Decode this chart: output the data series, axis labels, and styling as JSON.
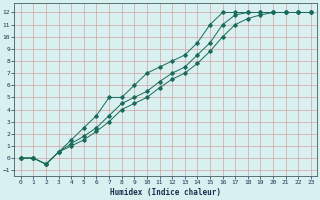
{
  "xlabel": "Humidex (Indice chaleur)",
  "background_color": "#d8f0f0",
  "plot_bg_color": "#d8f0f0",
  "grid_color": "#d4a0a0",
  "line_color": "#1a6b5a",
  "xlim": [
    -0.5,
    23.5
  ],
  "ylim": [
    -1.5,
    12.8
  ],
  "xticks": [
    0,
    1,
    2,
    3,
    4,
    5,
    6,
    7,
    8,
    9,
    10,
    11,
    12,
    13,
    14,
    15,
    16,
    17,
    18,
    19,
    20,
    21,
    22,
    23
  ],
  "yticks": [
    -1,
    0,
    1,
    2,
    3,
    4,
    5,
    6,
    7,
    8,
    9,
    10,
    11,
    12
  ],
  "line1_x": [
    0,
    1,
    2,
    3,
    4,
    5,
    6,
    7,
    8,
    9,
    10,
    11,
    12,
    13,
    14,
    15,
    16,
    17,
    18,
    19,
    20,
    21,
    22,
    23
  ],
  "line1_y": [
    0.0,
    0.0,
    -0.5,
    0.5,
    1.5,
    2.5,
    3.5,
    5.0,
    5.0,
    6.0,
    7.0,
    7.5,
    8.0,
    8.5,
    9.5,
    11.0,
    12.0,
    12.0,
    12.0,
    12.0,
    12.0,
    12.0,
    12.0,
    12.0
  ],
  "line2_x": [
    0,
    1,
    2,
    3,
    4,
    5,
    6,
    7,
    8,
    9,
    10,
    11,
    12,
    13,
    14,
    15,
    16,
    17,
    18,
    19,
    20,
    21,
    22,
    23
  ],
  "line2_y": [
    0.0,
    0.0,
    -0.5,
    0.5,
    1.2,
    1.8,
    2.5,
    3.5,
    4.5,
    5.0,
    5.5,
    6.3,
    7.0,
    7.5,
    8.5,
    9.5,
    11.0,
    11.8,
    12.0,
    12.0,
    12.0,
    12.0,
    12.0,
    12.0
  ],
  "line3_x": [
    0,
    1,
    2,
    3,
    4,
    5,
    6,
    7,
    8,
    9,
    10,
    11,
    12,
    13,
    14,
    15,
    16,
    17,
    18,
    19,
    20,
    21,
    22,
    23
  ],
  "line3_y": [
    0.0,
    0.0,
    -0.5,
    0.5,
    1.0,
    1.5,
    2.2,
    3.0,
    4.0,
    4.5,
    5.0,
    5.8,
    6.5,
    7.0,
    7.8,
    8.8,
    10.0,
    11.0,
    11.5,
    11.8,
    12.0,
    12.0,
    12.0,
    12.0
  ]
}
